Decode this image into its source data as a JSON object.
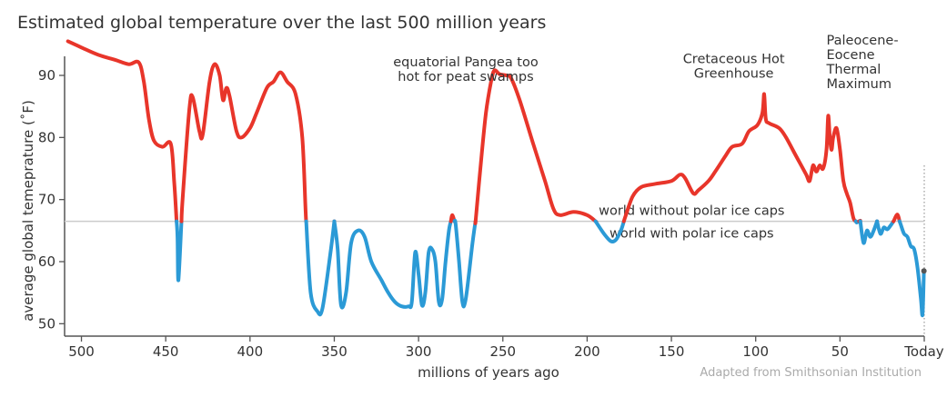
{
  "chart_data": {
    "type": "line",
    "title": "Estimated global temperature over the last 500 million years",
    "xlabel": "millions of years ago",
    "ylabel": "average global temeprature (˚F)",
    "source": "Adapted from Smithsonian Institution",
    "x_reversed": true,
    "xlim": [
      510,
      0
    ],
    "ylim": [
      48,
      96
    ],
    "x_ticks": [
      {
        "value": 500,
        "label": "500"
      },
      {
        "value": 450,
        "label": "450"
      },
      {
        "value": 400,
        "label": "400"
      },
      {
        "value": 350,
        "label": "350"
      },
      {
        "value": 300,
        "label": "300"
      },
      {
        "value": 250,
        "label": "250"
      },
      {
        "value": 200,
        "label": "200"
      },
      {
        "value": 150,
        "label": "150"
      },
      {
        "value": 100,
        "label": "100"
      },
      {
        "value": 50,
        "label": "50"
      },
      {
        "value": 0,
        "label": "Today"
      }
    ],
    "y_ticks": [
      {
        "value": 90,
        "label": "90"
      },
      {
        "value": 80,
        "label": "80"
      },
      {
        "value": 70,
        "label": "70"
      },
      {
        "value": 60,
        "label": "60"
      },
      {
        "value": 50,
        "label": "50"
      }
    ],
    "threshold": {
      "value": 66.5,
      "label_above": "world without polar ice caps",
      "label_below": "world with polar ice caps"
    },
    "colors": {
      "above": "#e8352a",
      "below": "#2b9ad6",
      "threshold": "#cccccc",
      "axis": "#555555",
      "text": "#333333",
      "source": "#aaaaaa"
    },
    "annotations": [
      {
        "lines": [
          "equatorial Pangea too",
          "hot for peat swamps"
        ],
        "x": 272,
        "y": 91.5,
        "anchor": "middle"
      },
      {
        "lines": [
          "Cretaceous Hot",
          "Greenhouse"
        ],
        "x": 113,
        "y": 92,
        "anchor": "middle"
      },
      {
        "lines": [
          "Paleocene-",
          "Eocene",
          "Thermal",
          "Maximum"
        ],
        "x": 58,
        "y": 95,
        "anchor": "start"
      }
    ],
    "series": [
      {
        "points": [
          [
            508,
            95.5
          ],
          [
            500,
            94.5
          ],
          [
            490,
            93.3
          ],
          [
            480,
            92.5
          ],
          [
            472,
            91.8
          ],
          [
            466,
            92.1
          ],
          [
            463,
            89
          ],
          [
            460,
            83
          ],
          [
            457,
            79.5
          ],
          [
            452,
            78.5
          ],
          [
            447,
            79
          ],
          [
            445,
            73
          ],
          [
            443,
            64
          ],
          [
            442.5,
            57
          ],
          [
            440,
            70
          ],
          [
            436,
            84.5
          ],
          [
            434,
            86.5
          ],
          [
            430,
            81
          ],
          [
            428,
            80.5
          ],
          [
            424,
            89
          ],
          [
            421,
            91.8
          ],
          [
            418,
            90
          ],
          [
            416,
            86
          ],
          [
            414,
            88
          ],
          [
            412,
            86.5
          ],
          [
            408,
            81
          ],
          [
            405,
            80
          ],
          [
            400,
            81.5
          ],
          [
            396,
            84
          ],
          [
            390,
            88
          ],
          [
            386,
            89
          ],
          [
            382,
            90.5
          ],
          [
            378,
            89
          ],
          [
            373,
            87
          ],
          [
            369,
            80
          ],
          [
            367,
            68
          ],
          [
            364,
            55
          ],
          [
            360,
            52
          ],
          [
            357,
            52.5
          ],
          [
            352,
            62
          ],
          [
            350,
            66.5
          ],
          [
            348,
            62
          ],
          [
            346,
            53
          ],
          [
            343,
            55
          ],
          [
            340,
            63
          ],
          [
            336,
            65
          ],
          [
            332,
            64
          ],
          [
            328,
            60
          ],
          [
            322,
            57
          ],
          [
            318,
            55
          ],
          [
            314,
            53.5
          ],
          [
            310,
            52.8
          ],
          [
            306,
            52.8
          ],
          [
            304,
            53.5
          ],
          [
            302,
            61.5
          ],
          [
            300,
            58
          ],
          [
            298,
            53
          ],
          [
            296,
            55
          ],
          [
            294,
            61.5
          ],
          [
            292,
            62
          ],
          [
            290,
            60
          ],
          [
            288,
            53.5
          ],
          [
            286,
            54
          ],
          [
            284,
            60
          ],
          [
            282,
            65
          ],
          [
            280,
            67.5
          ],
          [
            278,
            66
          ],
          [
            276,
            60
          ],
          [
            274,
            53.5
          ],
          [
            272,
            54
          ],
          [
            268,
            63
          ],
          [
            266,
            67
          ],
          [
            263,
            76
          ],
          [
            260,
            84
          ],
          [
            257,
            89
          ],
          [
            255,
            90.8
          ],
          [
            252,
            90.2
          ],
          [
            248,
            90
          ],
          [
            245,
            89.5
          ],
          [
            240,
            86
          ],
          [
            232,
            79
          ],
          [
            225,
            73
          ],
          [
            220,
            68.5
          ],
          [
            216,
            67.5
          ],
          [
            208,
            68
          ],
          [
            200,
            67.5
          ],
          [
            195,
            66.5
          ],
          [
            190,
            64.5
          ],
          [
            186,
            63.3
          ],
          [
            183,
            63.5
          ],
          [
            180,
            65
          ],
          [
            177,
            67.5
          ],
          [
            173,
            70.5
          ],
          [
            168,
            72
          ],
          [
            160,
            72.5
          ],
          [
            150,
            73
          ],
          [
            145,
            74
          ],
          [
            142,
            73.5
          ],
          [
            137,
            71
          ],
          [
            134,
            71.5
          ],
          [
            128,
            73
          ],
          [
            124,
            74.5
          ],
          [
            118,
            77
          ],
          [
            114,
            78.5
          ],
          [
            108,
            79
          ],
          [
            104,
            81
          ],
          [
            99,
            82
          ],
          [
            96,
            84
          ],
          [
            95,
            87
          ],
          [
            94,
            83
          ],
          [
            92,
            82.3
          ],
          [
            86,
            81.5
          ],
          [
            82,
            80
          ],
          [
            78,
            78
          ],
          [
            74,
            76
          ],
          [
            70,
            74
          ],
          [
            68,
            73
          ],
          [
            66,
            75.5
          ],
          [
            64,
            74.5
          ],
          [
            62,
            75.5
          ],
          [
            60,
            75
          ],
          [
            58,
            78
          ],
          [
            57,
            83.5
          ],
          [
            56,
            80
          ],
          [
            55,
            78
          ],
          [
            54,
            80
          ],
          [
            52,
            81.5
          ],
          [
            50,
            78
          ],
          [
            48,
            73
          ],
          [
            46,
            71
          ],
          [
            44,
            69.5
          ],
          [
            42,
            67
          ],
          [
            40,
            66.3
          ],
          [
            38,
            66.6
          ],
          [
            36,
            63
          ],
          [
            34,
            65
          ],
          [
            32,
            64
          ],
          [
            30,
            65
          ],
          [
            28,
            66.5
          ],
          [
            26,
            64.5
          ],
          [
            24,
            65.5
          ],
          [
            22,
            65.2
          ],
          [
            20,
            65.8
          ],
          [
            18,
            66.6
          ],
          [
            16,
            67.6
          ],
          [
            14,
            66
          ],
          [
            12,
            64.5
          ],
          [
            10,
            64
          ],
          [
            8,
            62.5
          ],
          [
            6,
            62
          ],
          [
            4,
            59
          ],
          [
            2,
            54
          ],
          [
            1,
            51.5
          ],
          [
            0.2,
            58.5
          ]
        ]
      }
    ]
  }
}
